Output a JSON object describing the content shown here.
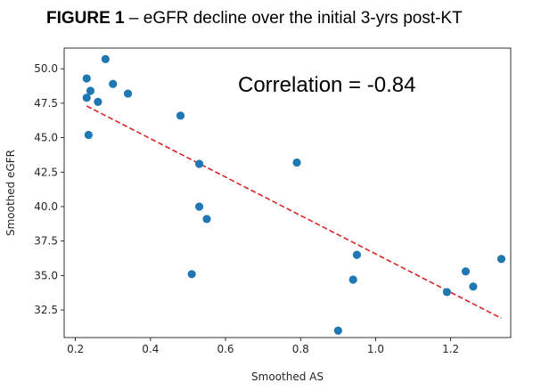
{
  "figure": {
    "title_prefix": "FIGURE 1",
    "title_rest": " – eGFR decline over the initial 3-yrs post-KT"
  },
  "chart_data": {
    "type": "scatter",
    "title": "FIGURE 1 – eGFR decline over the initial 3-yrs post-KT",
    "xlabel": "Smoothed AS",
    "ylabel": "Smoothed eGFR",
    "xlim": [
      0.17,
      1.36
    ],
    "ylim": [
      30.5,
      51.5
    ],
    "xticks": [
      0.2,
      0.4,
      0.6,
      0.8,
      1.0,
      1.2
    ],
    "xtick_labels": [
      "0.2",
      "0.4",
      "0.6",
      "0.8",
      "1.0",
      "1.2"
    ],
    "yticks": [
      32.5,
      35.0,
      37.5,
      40.0,
      42.5,
      45.0,
      47.5,
      50.0
    ],
    "ytick_labels": [
      "32.5",
      "35.0",
      "37.5",
      "40.0",
      "42.5",
      "45.0",
      "47.5",
      "50.0"
    ],
    "grid": false,
    "annotation": "Correlation = -0.84",
    "points": {
      "color": "#1f77b4",
      "x": [
        0.23,
        0.23,
        0.235,
        0.24,
        0.26,
        0.28,
        0.3,
        0.34,
        0.48,
        0.51,
        0.53,
        0.53,
        0.55,
        0.79,
        0.9,
        0.94,
        0.95,
        1.19,
        1.24,
        1.26,
        1.335
      ],
      "y": [
        49.3,
        47.9,
        45.2,
        48.4,
        47.6,
        50.7,
        48.9,
        48.2,
        46.6,
        35.1,
        43.1,
        40.0,
        39.1,
        43.2,
        31.0,
        34.7,
        36.5,
        33.8,
        35.3,
        34.2,
        36.2
      ]
    },
    "trendline": {
      "style": "dashed",
      "color": "#d62728",
      "x": [
        0.23,
        1.335
      ],
      "y": [
        47.3,
        31.9
      ]
    }
  }
}
